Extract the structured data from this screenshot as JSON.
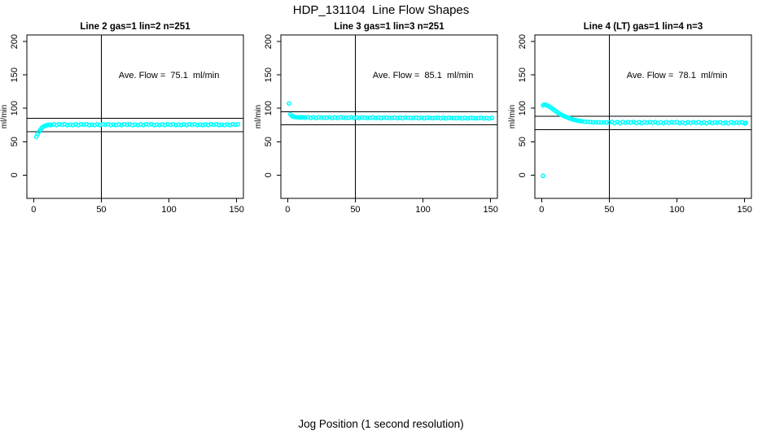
{
  "figure": {
    "title": "HDP_131104  Line Flow Shapes",
    "xlabel": "Jog Position (1 second resolution)"
  },
  "colors": {
    "point_color": "#00ffff",
    "axis_color": "#000000",
    "background": "#ffffff"
  },
  "chart_data": [
    {
      "type": "scatter",
      "title": "Line 2 gas=1 lin=2 n=251",
      "ylabel": "ml/min",
      "annotation": "Ave. Flow =  75.1  ml/min",
      "ave_flow_ml_min": 75.1,
      "xlim": [
        -5,
        155
      ],
      "ylim": [
        -35,
        210
      ],
      "x_ticks": [
        0,
        50,
        100,
        150
      ],
      "y_ticks": [
        0,
        50,
        100,
        150,
        200
      ],
      "vline_x": 50,
      "hlines_y": [
        85.1,
        65.1
      ],
      "points": [
        [
          2,
          57.3
        ],
        [
          3,
          61.5
        ],
        [
          4,
          65.0
        ],
        [
          5,
          68.0
        ],
        [
          6,
          70.5
        ],
        [
          7,
          72.3
        ],
        [
          8,
          73.5
        ],
        [
          9,
          74.3
        ],
        [
          10,
          74.8
        ],
        [
          11,
          75.1
        ],
        [
          12,
          75.3
        ],
        [
          13,
          75.0
        ],
        [
          15,
          75.9
        ],
        [
          17,
          74.9
        ],
        [
          19,
          76.2
        ],
        [
          21,
          75.4
        ],
        [
          23,
          76.0
        ],
        [
          25,
          74.8
        ],
        [
          27,
          75.6
        ],
        [
          29,
          75.0
        ],
        [
          31,
          75.9
        ],
        [
          33,
          74.9
        ],
        [
          35,
          76.2
        ],
        [
          37,
          75.4
        ],
        [
          39,
          76.0
        ],
        [
          41,
          74.8
        ],
        [
          43,
          75.6
        ],
        [
          45,
          75.0
        ],
        [
          47,
          75.9
        ],
        [
          49,
          74.9
        ],
        [
          51,
          76.2
        ],
        [
          53,
          75.4
        ],
        [
          55,
          76.0
        ],
        [
          57,
          74.8
        ],
        [
          59,
          75.6
        ],
        [
          61,
          75.0
        ],
        [
          63,
          75.9
        ],
        [
          65,
          74.9
        ],
        [
          67,
          76.2
        ],
        [
          69,
          75.4
        ],
        [
          71,
          76.0
        ],
        [
          73,
          74.8
        ],
        [
          75,
          75.6
        ],
        [
          77,
          75.0
        ],
        [
          79,
          75.9
        ],
        [
          81,
          74.9
        ],
        [
          83,
          76.2
        ],
        [
          85,
          75.4
        ],
        [
          87,
          76.0
        ],
        [
          89,
          74.8
        ],
        [
          91,
          75.6
        ],
        [
          93,
          75.0
        ],
        [
          95,
          75.9
        ],
        [
          97,
          74.9
        ],
        [
          99,
          76.2
        ],
        [
          101,
          75.4
        ],
        [
          103,
          76.0
        ],
        [
          105,
          74.8
        ],
        [
          107,
          75.6
        ],
        [
          109,
          75.0
        ],
        [
          111,
          75.9
        ],
        [
          113,
          74.9
        ],
        [
          115,
          76.2
        ],
        [
          117,
          75.4
        ],
        [
          119,
          76.0
        ],
        [
          121,
          74.8
        ],
        [
          123,
          75.6
        ],
        [
          125,
          75.0
        ],
        [
          127,
          75.9
        ],
        [
          129,
          74.9
        ],
        [
          131,
          76.2
        ],
        [
          133,
          75.4
        ],
        [
          135,
          76.0
        ],
        [
          137,
          74.8
        ],
        [
          139,
          75.6
        ],
        [
          141,
          75.0
        ],
        [
          143,
          75.9
        ],
        [
          145,
          74.9
        ],
        [
          147,
          76.2
        ],
        [
          149,
          75.4
        ],
        [
          151,
          76.0
        ]
      ]
    },
    {
      "type": "scatter",
      "title": "Line 3 gas=1 lin=3 n=251",
      "ylabel": "ml/min",
      "annotation": "Ave. Flow =  85.1  ml/min",
      "ave_flow_ml_min": 85.1,
      "xlim": [
        -5,
        155
      ],
      "ylim": [
        -35,
        210
      ],
      "x_ticks": [
        0,
        50,
        100,
        150
      ],
      "y_ticks": [
        0,
        50,
        100,
        150,
        200
      ],
      "vline_x": 50,
      "hlines_y": [
        95.1,
        75.1
      ],
      "points": [
        [
          1,
          107.2
        ],
        [
          2,
          91.0
        ],
        [
          3,
          88.7
        ],
        [
          4,
          87.6
        ],
        [
          5,
          87.1
        ],
        [
          6,
          86.8
        ],
        [
          7,
          86.6
        ],
        [
          8,
          86.5
        ],
        [
          9,
          86.4
        ],
        [
          10,
          86.4
        ],
        [
          11,
          86.3
        ],
        [
          12,
          86.3
        ],
        [
          13,
          86.1
        ],
        [
          15,
          86.6
        ],
        [
          17,
          85.7
        ],
        [
          19,
          86.4
        ],
        [
          21,
          85.6
        ],
        [
          23,
          86.5
        ],
        [
          25,
          86.2
        ],
        [
          27,
          85.8
        ],
        [
          29,
          86.0
        ],
        [
          31,
          86.5
        ],
        [
          33,
          85.6
        ],
        [
          35,
          86.3
        ],
        [
          37,
          85.5
        ],
        [
          39,
          86.4
        ],
        [
          41,
          86.1
        ],
        [
          43,
          85.7
        ],
        [
          45,
          85.9
        ],
        [
          47,
          86.4
        ],
        [
          49,
          85.5
        ],
        [
          51,
          86.2
        ],
        [
          53,
          85.4
        ],
        [
          55,
          86.3
        ],
        [
          57,
          86.0
        ],
        [
          59,
          85.6
        ],
        [
          61,
          85.8
        ],
        [
          63,
          86.3
        ],
        [
          65,
          85.4
        ],
        [
          67,
          86.1
        ],
        [
          69,
          85.3
        ],
        [
          71,
          86.2
        ],
        [
          73,
          85.9
        ],
        [
          75,
          85.5
        ],
        [
          77,
          85.7
        ],
        [
          79,
          86.2
        ],
        [
          81,
          85.3
        ],
        [
          83,
          86.0
        ],
        [
          85,
          85.2
        ],
        [
          87,
          86.1
        ],
        [
          89,
          85.8
        ],
        [
          91,
          85.4
        ],
        [
          93,
          85.6
        ],
        [
          95,
          86.1
        ],
        [
          97,
          85.2
        ],
        [
          99,
          85.9
        ],
        [
          101,
          85.1
        ],
        [
          103,
          86.0
        ],
        [
          105,
          85.7
        ],
        [
          107,
          85.3
        ],
        [
          109,
          85.5
        ],
        [
          111,
          86.0
        ],
        [
          113,
          85.1
        ],
        [
          115,
          85.8
        ],
        [
          117,
          85.0
        ],
        [
          119,
          85.9
        ],
        [
          121,
          85.6
        ],
        [
          123,
          85.2
        ],
        [
          125,
          85.4
        ],
        [
          127,
          85.9
        ],
        [
          129,
          85.0
        ],
        [
          131,
          85.7
        ],
        [
          133,
          84.9
        ],
        [
          135,
          85.8
        ],
        [
          137,
          85.5
        ],
        [
          139,
          85.1
        ],
        [
          141,
          85.3
        ],
        [
          143,
          85.8
        ],
        [
          145,
          84.9
        ],
        [
          147,
          85.6
        ],
        [
          149,
          84.8
        ],
        [
          151,
          85.7
        ]
      ]
    },
    {
      "type": "scatter",
      "title": "Line 4 (LT) gas=1 lin=4 n=3",
      "ylabel": "ml/min",
      "annotation": "Ave. Flow =  78.1  ml/min",
      "ave_flow_ml_min": 78.1,
      "xlim": [
        -5,
        155
      ],
      "ylim": [
        -35,
        210
      ],
      "x_ticks": [
        0,
        50,
        100,
        150
      ],
      "y_ticks": [
        0,
        50,
        100,
        150,
        200
      ],
      "vline_x": 50,
      "hlines_y": [
        88.1,
        68.1
      ],
      "points": [
        [
          1,
          -1.2
        ],
        [
          1,
          104.5
        ],
        [
          2,
          105.5
        ],
        [
          3,
          105.2
        ],
        [
          4,
          104.5
        ],
        [
          5,
          103.4
        ],
        [
          6,
          102.2
        ],
        [
          7,
          100.8
        ],
        [
          8,
          99.3
        ],
        [
          9,
          97.8
        ],
        [
          10,
          96.3
        ],
        [
          11,
          94.9
        ],
        [
          12,
          93.5
        ],
        [
          13,
          92.2
        ],
        [
          14,
          91.0
        ],
        [
          15,
          89.9
        ],
        [
          16,
          88.9
        ],
        [
          17,
          88.0
        ],
        [
          18,
          87.1
        ],
        [
          19,
          86.3
        ],
        [
          20,
          85.5
        ],
        [
          21,
          84.8
        ],
        [
          22,
          84.1
        ],
        [
          23,
          83.5
        ],
        [
          24,
          82.9
        ],
        [
          25,
          82.4
        ],
        [
          26,
          81.9
        ],
        [
          27,
          81.5
        ],
        [
          28,
          81.1
        ],
        [
          29,
          80.8
        ],
        [
          30,
          80.5
        ],
        [
          32,
          80.0
        ],
        [
          34,
          79.7
        ],
        [
          36,
          79.4
        ],
        [
          38,
          79.2
        ],
        [
          40,
          79.1
        ],
        [
          42,
          79.0
        ],
        [
          44,
          78.9
        ],
        [
          46,
          78.9
        ],
        [
          48,
          78.8
        ],
        [
          50,
          78.8
        ],
        [
          52,
          79.7
        ],
        [
          54,
          78.0
        ],
        [
          56,
          79.3
        ],
        [
          58,
          77.8
        ],
        [
          60,
          79.6
        ],
        [
          62,
          78.4
        ],
        [
          64,
          79.4
        ],
        [
          66,
          78.7
        ],
        [
          68,
          79.6
        ],
        [
          70,
          77.9
        ],
        [
          72,
          79.2
        ],
        [
          74,
          77.7
        ],
        [
          76,
          79.5
        ],
        [
          78,
          78.3
        ],
        [
          80,
          79.3
        ],
        [
          82,
          78.6
        ],
        [
          84,
          79.5
        ],
        [
          86,
          77.8
        ],
        [
          88,
          79.1
        ],
        [
          90,
          77.6
        ],
        [
          92,
          79.4
        ],
        [
          94,
          78.2
        ],
        [
          96,
          79.2
        ],
        [
          98,
          78.5
        ],
        [
          100,
          79.4
        ],
        [
          102,
          77.7
        ],
        [
          104,
          79.0
        ],
        [
          106,
          77.5
        ],
        [
          108,
          79.3
        ],
        [
          110,
          78.1
        ],
        [
          112,
          79.1
        ],
        [
          114,
          78.4
        ],
        [
          116,
          79.3
        ],
        [
          118,
          77.6
        ],
        [
          120,
          78.9
        ],
        [
          122,
          77.4
        ],
        [
          124,
          79.2
        ],
        [
          126,
          78.0
        ],
        [
          128,
          79.0
        ],
        [
          130,
          78.3
        ],
        [
          132,
          79.2
        ],
        [
          134,
          77.5
        ],
        [
          136,
          78.8
        ],
        [
          138,
          77.3
        ],
        [
          140,
          79.1
        ],
        [
          142,
          77.9
        ],
        [
          144,
          78.9
        ],
        [
          146,
          78.2
        ],
        [
          148,
          79.1
        ],
        [
          150,
          77.4
        ],
        [
          151,
          78.3
        ]
      ]
    }
  ]
}
